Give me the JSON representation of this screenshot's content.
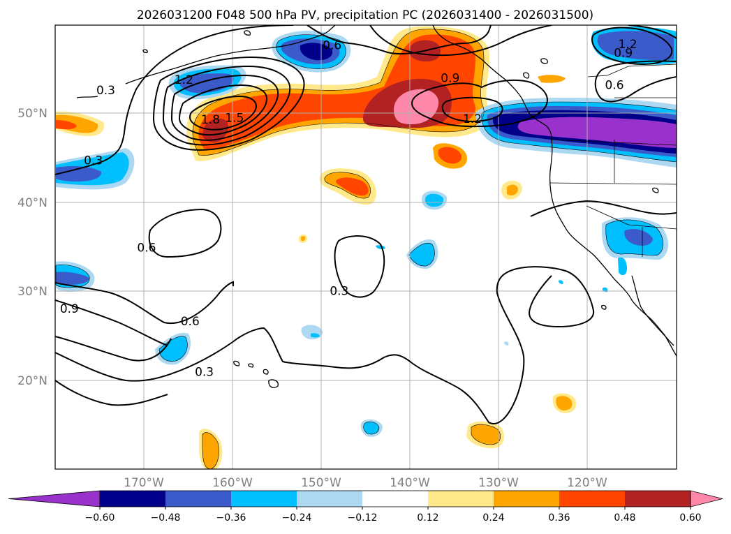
{
  "title": "2026031200 F048 500 hPa PV, precipitation PC (2026031400 - 2026031500)",
  "lon_labels": [
    "170°W",
    "160°W",
    "150°W",
    "140°W",
    "130°W",
    "120°W"
  ],
  "lat_labels": [
    "50°N",
    "40°N",
    "30°N",
    "20°N"
  ],
  "map_extent": {
    "lon_min": -180,
    "lon_max": -110,
    "lat_min": 10,
    "lat_max": 60
  },
  "contour_labels": [
    {
      "text": "0.3",
      "lon": -174.3,
      "lat": 52.6
    },
    {
      "text": "1.2",
      "lon": -165.5,
      "lat": 53.8
    },
    {
      "text": "1.8",
      "lon": -162.5,
      "lat": 49.3
    },
    {
      "text": "1.5",
      "lon": -159.8,
      "lat": 49.5
    },
    {
      "text": "0.6",
      "lon": -148.8,
      "lat": 57.7
    },
    {
      "text": "0.9",
      "lon": -135.5,
      "lat": 54.0
    },
    {
      "text": "1.2",
      "lon": -133.0,
      "lat": 49.4
    },
    {
      "text": "1.2",
      "lon": -115.5,
      "lat": 57.8
    },
    {
      "text": "0.9",
      "lon": -116.0,
      "lat": 56.8
    },
    {
      "text": "0.6",
      "lon": -117.0,
      "lat": 53.2
    },
    {
      "text": "0.3",
      "lon": -175.7,
      "lat": 44.7
    },
    {
      "text": "0.6",
      "lon": -169.7,
      "lat": 34.9
    },
    {
      "text": "0.3",
      "lon": -148.0,
      "lat": 30.0
    },
    {
      "text": "0.9",
      "lon": -178.4,
      "lat": 28.0
    },
    {
      "text": "0.6",
      "lon": -164.8,
      "lat": 26.6
    },
    {
      "text": "0.3",
      "lon": -163.2,
      "lat": 20.9
    }
  ],
  "colorbar": {
    "levels": [
      "−0.60",
      "−0.48",
      "−0.36",
      "−0.24",
      "−0.12",
      "0.12",
      "0.24",
      "0.36",
      "0.48",
      "0.60"
    ],
    "colors": [
      "#9932cc",
      "#00008b",
      "#3a5bc9",
      "#00bfff",
      "#add8f2",
      "#ffffff",
      "#ffe98a",
      "#ffa500",
      "#ff4500",
      "#b22222",
      "#ff88aa"
    ]
  }
}
